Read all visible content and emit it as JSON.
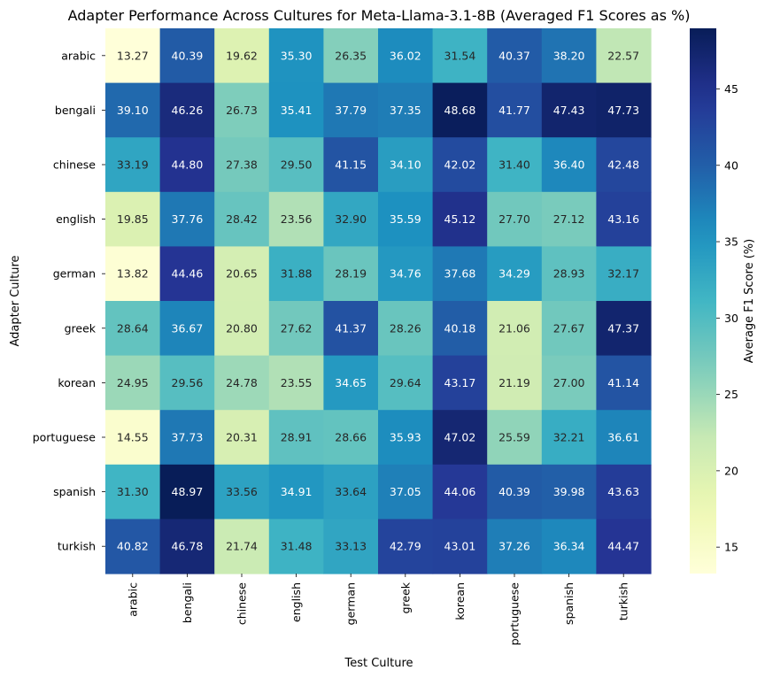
{
  "chart_data": {
    "type": "heatmap",
    "title": "Adapter Performance Across Cultures for Meta-Llama-3.1-8B (Averaged F1 Scores as %)",
    "xlabel": "Test Culture",
    "ylabel": "Adapter Culture",
    "colorbar_label": "Average F1 Score (%)",
    "colorbar_ticks": [
      15,
      20,
      25,
      30,
      35,
      40,
      45
    ],
    "color_range": [
      13.27,
      48.97
    ],
    "colormap": "YlGnBu",
    "x_categories": [
      "arabic",
      "bengali",
      "chinese",
      "english",
      "german",
      "greek",
      "korean",
      "portuguese",
      "spanish",
      "turkish"
    ],
    "y_categories": [
      "arabic",
      "bengali",
      "chinese",
      "english",
      "german",
      "greek",
      "korean",
      "portuguese",
      "spanish",
      "turkish"
    ],
    "values": [
      [
        13.27,
        40.39,
        19.62,
        35.3,
        26.35,
        36.02,
        31.54,
        40.37,
        38.2,
        22.57
      ],
      [
        39.1,
        46.26,
        26.73,
        35.41,
        37.79,
        37.35,
        48.68,
        41.77,
        47.43,
        47.73
      ],
      [
        33.19,
        44.8,
        27.38,
        29.5,
        41.15,
        34.1,
        42.02,
        31.4,
        36.4,
        42.48
      ],
      [
        19.85,
        37.76,
        28.42,
        23.56,
        32.9,
        35.59,
        45.12,
        27.7,
        27.12,
        43.16
      ],
      [
        13.82,
        44.46,
        20.65,
        31.88,
        28.19,
        34.76,
        37.68,
        34.29,
        28.93,
        32.17
      ],
      [
        28.64,
        36.67,
        20.8,
        27.62,
        41.37,
        28.26,
        40.18,
        21.06,
        27.67,
        47.37
      ],
      [
        24.95,
        29.56,
        24.78,
        23.55,
        34.65,
        29.64,
        43.17,
        21.19,
        27.0,
        41.14
      ],
      [
        14.55,
        37.73,
        20.31,
        28.91,
        28.66,
        35.93,
        47.02,
        25.59,
        32.21,
        36.61
      ],
      [
        31.3,
        48.97,
        33.56,
        34.91,
        33.64,
        37.05,
        44.06,
        40.39,
        39.98,
        43.63
      ],
      [
        40.82,
        46.78,
        21.74,
        31.48,
        33.13,
        42.79,
        43.01,
        37.26,
        36.34,
        44.47
      ]
    ]
  }
}
